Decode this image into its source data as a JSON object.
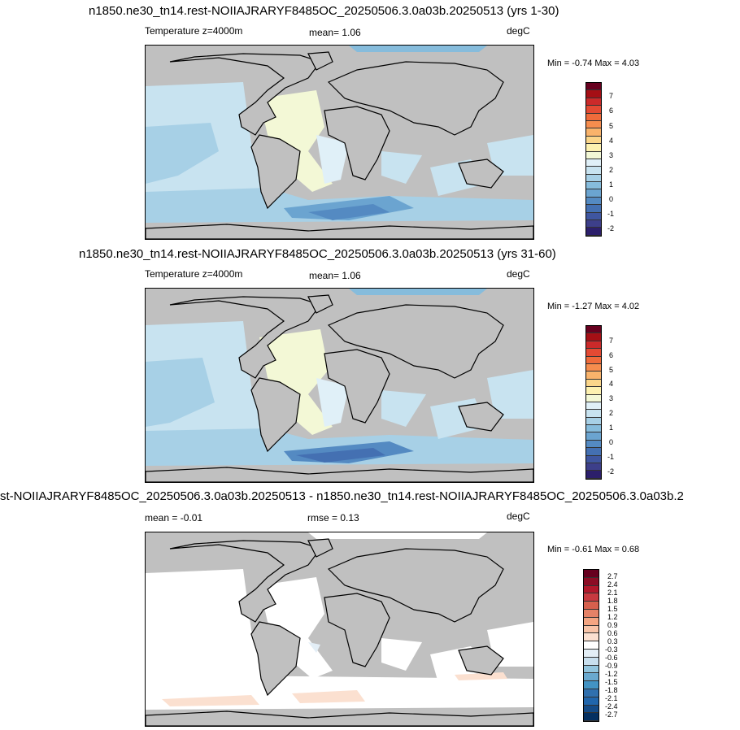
{
  "panels": [
    {
      "title": "n1850.ne30_tn14.rest-NOIIAJRARYF8485OC_20250506.3.0a03b.20250513 (yrs 1-30)",
      "left_label": "Temperature z=4000m",
      "mid_label": "mean=   1.06",
      "units": "degC",
      "minmax": "Min =  -0.74 Max =   4.03"
    },
    {
      "title": "n1850.ne30_tn14.rest-NOIIAJRARYF8485OC_20250506.3.0a03b.20250513 (yrs 31-60)",
      "left_label": "Temperature z=4000m",
      "mid_label": "mean=   1.06",
      "units": "degC",
      "minmax": "Min =  -1.27 Max =   4.02"
    },
    {
      "title": "st-NOIIAJRARYF8485OC_20250506.3.0a03b.20250513 - n1850.ne30_tn14.rest-NOIIAJRARYF8485OC_20250506.3.0a03b.2",
      "left_label": "mean =  -0.01",
      "mid_label": "rmse =   0.13",
      "units": "degC",
      "minmax": "Min =  -0.61 Max =   0.68"
    }
  ],
  "colorbar_temp": {
    "labels": [
      "7",
      "6",
      "5",
      "4",
      "3",
      "2",
      "1",
      "0",
      "-1",
      "-2"
    ],
    "colors": [
      "#67001f",
      "#a50f15",
      "#cb2a2a",
      "#e34a33",
      "#ef6b3b",
      "#f68d4e",
      "#f9b36b",
      "#fbd68a",
      "#fdf1b0",
      "#f3f8d6",
      "#e0f0f8",
      "#c8e3f0",
      "#a7d0e6",
      "#86bcdc",
      "#6ba4d0",
      "#548ac2",
      "#4470b2",
      "#3f56a0",
      "#3d3f8a",
      "#2c1f6b"
    ]
  },
  "colorbar_diff": {
    "labels": [
      "2.7",
      "2.4",
      "2.1",
      "1.8",
      "1.5",
      "1.2",
      "0.9",
      "0.6",
      "0.3",
      "-0.3",
      "-0.6",
      "-0.9",
      "-1.2",
      "-1.5",
      "-1.8",
      "-2.1",
      "-2.4",
      "-2.7"
    ],
    "colors": [
      "#67001f",
      "#8c0d25",
      "#b2182b",
      "#c8393f",
      "#d6604d",
      "#e58267",
      "#f4a582",
      "#f8c4a8",
      "#fbe0d0",
      "#ffffff",
      "#e3eef6",
      "#c8dfee",
      "#92c5de",
      "#6aa9cf",
      "#4393c3",
      "#3070ae",
      "#2166ac",
      "#154b87",
      "#053061"
    ]
  }
}
